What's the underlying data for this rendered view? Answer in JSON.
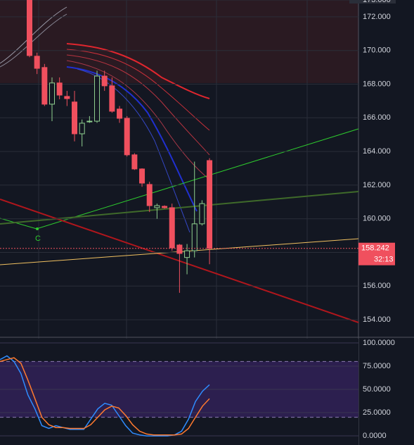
{
  "chart_data": {
    "type": "candlestick",
    "ylim": [
      153,
      173
    ],
    "yticks": [
      {
        "value": 173,
        "label": "173.000"
      },
      {
        "value": 172,
        "label": "172.000"
      },
      {
        "value": 170,
        "label": "170.000"
      },
      {
        "value": 168,
        "label": "168.000"
      },
      {
        "value": 166,
        "label": "166.000"
      },
      {
        "value": 164,
        "label": "164.000"
      },
      {
        "value": 162,
        "label": "162.000"
      },
      {
        "value": 160,
        "label": "160.000"
      },
      {
        "value": 158,
        "label": "158.000"
      },
      {
        "value": 156,
        "label": "156.000"
      },
      {
        "value": 154,
        "label": "154.000"
      }
    ],
    "open": [
      173.0,
      169.66,
      168.99,
      166.81,
      168.07,
      167.27,
      166.94,
      165.05,
      165.8,
      165.8,
      168.48,
      167.9,
      166.52,
      165.97,
      163.8,
      162.96,
      162.04,
      160.66,
      160.74,
      160.66,
      158.44,
      157.7,
      158.1,
      159.7,
      163.46
    ],
    "close": [
      169.7,
      168.94,
      166.81,
      168.07,
      167.35,
      167.14,
      165.05,
      165.68,
      165.8,
      168.48,
      167.9,
      166.39,
      165.97,
      163.8,
      162.96,
      162.12,
      160.78,
      160.78,
      160.66,
      158.27,
      157.94,
      158.1,
      159.7,
      160.9,
      158.24
    ],
    "high": [
      173.0,
      169.87,
      169.2,
      168.4,
      168.4,
      167.6,
      167.6,
      165.9,
      166.1,
      168.8,
      168.8,
      168.4,
      166.7,
      166.1,
      163.9,
      163.0,
      162.2,
      160.9,
      160.8,
      160.9,
      158.5,
      158.5,
      163.4,
      161.1,
      163.6
    ],
    "low": [
      169.6,
      168.6,
      166.7,
      165.8,
      167.1,
      166.7,
      164.6,
      164.3,
      165.7,
      165.7,
      167.6,
      166.3,
      165.7,
      163.7,
      162.9,
      161.9,
      160.4,
      160.0,
      160.6,
      158.1,
      155.6,
      156.7,
      157.7,
      159.6,
      157.3
    ],
    "current_price": 158.242,
    "countdown": "32:13",
    "annotation": "C",
    "oscillator": {
      "ylim": [
        -9.8,
        104.5
      ],
      "yticks": [
        {
          "value": 100,
          "label": "100.0000"
        },
        {
          "value": 75,
          "label": "75.0000"
        },
        {
          "value": 50,
          "label": "50.0000"
        },
        {
          "value": 25,
          "label": "25.0000"
        },
        {
          "value": 0,
          "label": "0.0000"
        }
      ],
      "bands": [
        80,
        20
      ],
      "series": [
        {
          "color": "#2f8cff",
          "values": [
            82,
            86,
            80,
            67,
            44,
            29,
            11,
            8,
            11,
            9,
            7,
            7,
            7,
            18,
            29,
            35,
            33,
            22,
            11,
            3,
            1,
            0,
            0,
            0,
            0,
            1,
            5,
            18,
            37,
            48,
            55
          ]
        },
        {
          "color": "#ff7a2f",
          "values": [
            80,
            82,
            84,
            78,
            60,
            40,
            20,
            12,
            9,
            9,
            8,
            8,
            8,
            12,
            20,
            28,
            32,
            30,
            22,
            12,
            5,
            2,
            1,
            1,
            1,
            1,
            2,
            8,
            20,
            32,
            40
          ]
        }
      ]
    }
  }
}
